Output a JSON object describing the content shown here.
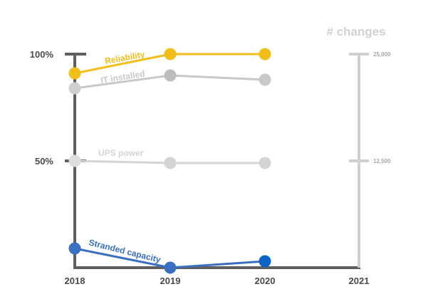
{
  "chart_data": {
    "type": "line",
    "title": "",
    "xlabel": "",
    "ylabel": "",
    "x": [
      "2018",
      "2019",
      "2020"
    ],
    "ylim": [
      0,
      100
    ],
    "y_ticks": [
      "100%",
      "50%"
    ],
    "y_tick_values": [
      100,
      50
    ],
    "right_axis": {
      "title": "# changes",
      "x": "2021",
      "ylim": [
        0,
        25000
      ],
      "tick_labels": [
        "25,000",
        "12,500"
      ],
      "tick_values": [
        25000,
        12500
      ]
    },
    "x_tick_labels": [
      "2018",
      "2019",
      "2020",
      "2021"
    ],
    "series": [
      {
        "name": "Reliability",
        "color": "#f2be1a",
        "values": [
          91,
          100,
          100
        ]
      },
      {
        "name": "IT installed",
        "color": "#c8c8c8",
        "values": [
          84,
          90,
          88
        ]
      },
      {
        "name": "UPS power",
        "color": "#d4d4d4",
        "values": [
          50,
          49,
          49
        ]
      },
      {
        "name": "Stranded capacity",
        "color": "#3a6fc2",
        "values": [
          9,
          0,
          3
        ]
      }
    ],
    "grid": false,
    "legend": "inline labels"
  }
}
